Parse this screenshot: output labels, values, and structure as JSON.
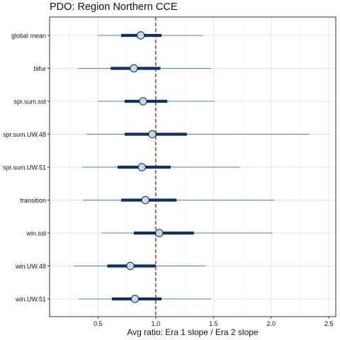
{
  "chart_data": {
    "type": "forest",
    "title": "PDO: Region Northern CCE",
    "xlabel": "Avg ratio: Era 1 slope / Era 2 slope",
    "ylabel": "",
    "xlim": [
      0.08,
      2.56
    ],
    "xticks": [
      0.5,
      1.0,
      1.5,
      2.0,
      2.5
    ],
    "xtick_labels": [
      "0.5",
      "1.0",
      "1.5",
      "2.0",
      "2.5"
    ],
    "reference_line": 1.0,
    "grid": true,
    "categories": [
      "global mean",
      "bifur",
      "spr.sum.sst",
      "spr.sum.UW.48",
      "spr.sum.UW.51",
      "transition",
      "win.sst",
      "win.UW.48",
      "win.UW.51"
    ],
    "points": [
      {
        "label": "global mean",
        "median": 0.87,
        "inner": [
          0.7,
          1.05
        ],
        "outer": [
          0.5,
          1.41
        ]
      },
      {
        "label": "bifur",
        "median": 0.81,
        "inner": [
          0.61,
          1.04
        ],
        "outer": [
          0.33,
          1.48
        ]
      },
      {
        "label": "spr.sum.sst",
        "median": 0.89,
        "inner": [
          0.73,
          1.1
        ],
        "outer": [
          0.5,
          1.51
        ]
      },
      {
        "label": "spr.sum.UW.48",
        "median": 0.97,
        "inner": [
          0.73,
          1.27
        ],
        "outer": [
          0.4,
          2.33
        ]
      },
      {
        "label": "spr.sum.UW.51",
        "median": 0.88,
        "inner": [
          0.67,
          1.13
        ],
        "outer": [
          0.36,
          1.73
        ]
      },
      {
        "label": "transition",
        "median": 0.91,
        "inner": [
          0.7,
          1.18
        ],
        "outer": [
          0.37,
          2.03
        ]
      },
      {
        "label": "win.sst",
        "median": 1.03,
        "inner": [
          0.81,
          1.33
        ],
        "outer": [
          0.53,
          2.01
        ]
      },
      {
        "label": "win.UW.48",
        "median": 0.78,
        "inner": [
          0.58,
          1.0
        ],
        "outer": [
          0.29,
          1.43
        ]
      },
      {
        "label": "win.UW.51",
        "median": 0.82,
        "inner": [
          0.62,
          1.05
        ],
        "outer": [
          0.33,
          1.48
        ]
      }
    ],
    "colors": {
      "outer_line": "#4a7fb0",
      "inner_line": "#11325e",
      "point_fill": "#c5d8ea",
      "point_stroke": "#0b2348",
      "reference_line": "#e01b1b",
      "panel_border": "#333333",
      "grid": "#e3e3e3"
    }
  }
}
